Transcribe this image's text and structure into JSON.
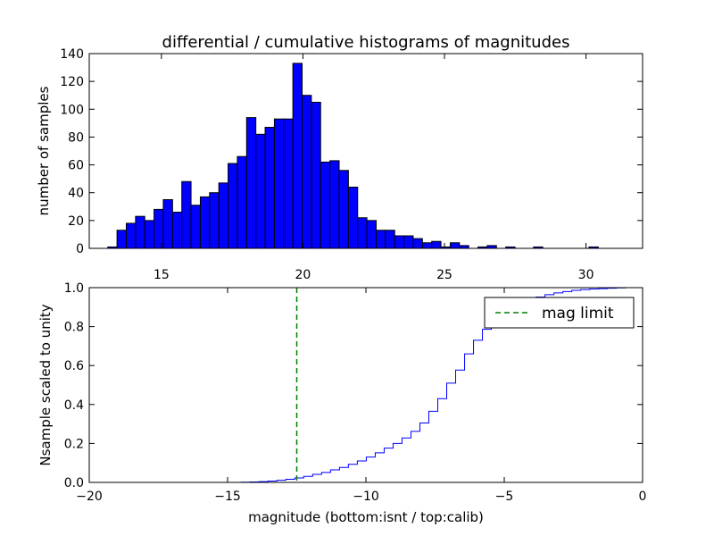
{
  "chart_data": [
    {
      "type": "bar",
      "title": "differential / cumulative histograms of magnitudes",
      "xlabel": "",
      "ylabel": "number of samples",
      "xlim": [
        12.45,
        32.0
      ],
      "ylim": [
        0,
        140
      ],
      "xticks": [
        15,
        20,
        25,
        30
      ],
      "yticks": [
        0,
        20,
        40,
        60,
        80,
        100,
        120,
        140
      ],
      "bin_start": 12.45,
      "bin_width": 0.327,
      "color": "#0000ff",
      "values": [
        0,
        0,
        1,
        13,
        18,
        23,
        20,
        28,
        35,
        26,
        48,
        31,
        37,
        40,
        47,
        61,
        66,
        94,
        82,
        87,
        93,
        93,
        133,
        110,
        105,
        62,
        63,
        56,
        44,
        22,
        20,
        13,
        13,
        9,
        9,
        7,
        4,
        5,
        1,
        4,
        2,
        0,
        1,
        2,
        0,
        1,
        0,
        0,
        1,
        0,
        0,
        0,
        0,
        0,
        1,
        0,
        0,
        0,
        0,
        0
      ]
    },
    {
      "type": "line",
      "step": true,
      "xlabel": "magnitude (bottom:isnt / top:calib)",
      "ylabel": "Nsample scaled to unity",
      "xlim": [
        -20,
        0
      ],
      "ylim": [
        0.0,
        1.0
      ],
      "xticks": [
        -20,
        -15,
        -10,
        -5,
        0
      ],
      "yticks": [
        0.0,
        0.2,
        0.4,
        0.6,
        0.8,
        1.0
      ],
      "bin_start": -20.0,
      "bin_width": 0.323,
      "series": [
        {
          "name": "cdf",
          "color": "#0000ff",
          "values": [
            0,
            0,
            0,
            0,
            0,
            0,
            0,
            0,
            0,
            0,
            0,
            0,
            0,
            0,
            0,
            0,
            0,
            0.001,
            0.002,
            0.004,
            0.007,
            0.011,
            0.016,
            0.023,
            0.031,
            0.041,
            0.051,
            0.064,
            0.077,
            0.093,
            0.11,
            0.13,
            0.152,
            0.176,
            0.2,
            0.228,
            0.262,
            0.305,
            0.365,
            0.43,
            0.51,
            0.577,
            0.66,
            0.73,
            0.786,
            0.826,
            0.865,
            0.895,
            0.918,
            0.937,
            0.952,
            0.964,
            0.973,
            0.98,
            0.986,
            0.99,
            0.993,
            0.995,
            0.997,
            0.999,
            1.0,
            1.0
          ]
        }
      ],
      "vline": {
        "x": -12.5,
        "label": "mag limit",
        "color": "#008000"
      },
      "legend": "top-right"
    }
  ]
}
